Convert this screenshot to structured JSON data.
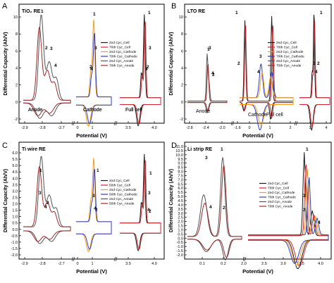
{
  "figure": {
    "y_label": "Differential Capacity (Ah/V)",
    "x_label": "Potential (V)"
  },
  "chart_data": [
    {
      "panel": "A",
      "type": "line",
      "title": "TiO₂ RE",
      "ylim": [
        -2,
        11
      ],
      "yticks": [
        "-2",
        "0",
        "2",
        "4",
        "6",
        "8",
        "10"
      ],
      "xticks": [
        "-2.9",
        "-2.8",
        "-2.7",
        "0",
        "1",
        "3.5",
        "4.0"
      ],
      "region_labels": [
        "Anode",
        "Cathode",
        "Full cell"
      ],
      "peak_labels": [
        "1",
        "2",
        "3",
        "4",
        "1",
        "2",
        "3",
        "4",
        "1",
        "2",
        "3",
        "4"
      ],
      "legend_position": "center-right",
      "series": [
        {
          "name": "2nd Cyc_Cell",
          "color": "#1a1a1a"
        },
        {
          "name": "70th Cyc_Cell",
          "color": "#d6262b"
        },
        {
          "name": "2nd Cyc_Cathode",
          "color": "#f39c12"
        },
        {
          "name": "70th Cyc_Cathode",
          "color": "#2b3bd1"
        },
        {
          "name": "2nd Cyc_Anode",
          "color": "#555555"
        },
        {
          "name": "70th Cyc_Anode",
          "color": "#9b2a2a"
        }
      ]
    },
    {
      "panel": "B",
      "type": "line",
      "title": "LTO RE",
      "ylim": [
        -2,
        11
      ],
      "yticks": [
        "-2",
        "0",
        "2",
        "4",
        "6",
        "8",
        "10"
      ],
      "xticks": [
        "-2.8",
        "-2.4",
        "-2.0",
        "-1.6",
        "0",
        "1",
        "2",
        "3",
        "4"
      ],
      "region_labels": [
        "Anode",
        "Cathode",
        "Full cell"
      ],
      "peak_labels": [
        "1",
        "2",
        "3",
        "4",
        "1",
        "2",
        "3",
        "4",
        "1",
        "2",
        "3",
        "4"
      ],
      "legend_position": "center-right",
      "series": [
        {
          "name": "2nd Cyc_Cell",
          "color": "#1a1a1a"
        },
        {
          "name": "70th Cyc_Cell",
          "color": "#d6262b"
        },
        {
          "name": "2nd Cyc_Cathode",
          "color": "#f39c12"
        },
        {
          "name": "70th Cyc_Cathode",
          "color": "#2b3bd1"
        },
        {
          "name": "2nd Cyc_Anode",
          "color": "#555555"
        },
        {
          "name": "70th Cyc_Anode",
          "color": "#9b2a2a"
        }
      ]
    },
    {
      "panel": "C",
      "type": "line",
      "title": "Ti wire RE",
      "ylim": [
        -2,
        6.5
      ],
      "yticks": [
        "-2.0",
        "-1.5",
        "-1.0",
        "-0.5",
        "0.0",
        "0.5",
        "1.0",
        "1.5",
        "2.0",
        "2.5",
        "3.0",
        "3.5",
        "4.0",
        "4.5",
        "5.0",
        "5.5",
        "6.0"
      ],
      "xticks": [
        "-2.9",
        "-2.8",
        "-2.7",
        "0",
        "1",
        "3.5",
        "4.0"
      ],
      "region_labels": [
        "Anode",
        "Cathode",
        "Full cell"
      ],
      "peak_labels": [
        "1",
        "2",
        "3",
        "4",
        "1",
        "2",
        "3",
        "4",
        "1",
        "2",
        "3",
        "4"
      ],
      "legend_position": "center-right",
      "series": [
        {
          "name": "2nd Cyc_Cell",
          "color": "#1a1a1a"
        },
        {
          "name": "50th Cyc_Cell",
          "color": "#d6262b"
        },
        {
          "name": "2nd Cyc_Cathode",
          "color": "#f39c12"
        },
        {
          "name": "50th Cyc_Cathode",
          "color": "#2b3bd1"
        },
        {
          "name": "2nd Cyc_Anode",
          "color": "#555555"
        },
        {
          "name": "50th Cyc_Anode",
          "color": "#9b2a2a"
        }
      ]
    },
    {
      "panel": "D",
      "type": "line",
      "title": "Li strip RE",
      "ylim": [
        -2,
        11
      ],
      "yticks": [
        "-2.0",
        "-1.5",
        "-1.0",
        "-0.5",
        "0.0",
        "0.5",
        "1.0",
        "1.5",
        "2.0",
        "2.5",
        "3.0",
        "3.5",
        "4.0",
        "4.5",
        "5.0",
        "5.5",
        "6.0",
        "6.5",
        "7.0",
        "7.5",
        "8.0",
        "8.5",
        "9.0",
        "9.5",
        "10.0",
        "10.5",
        "11.0"
      ],
      "xticks": [
        "0.1",
        "0.2",
        "2.0",
        "2.5",
        "3.0",
        "3.5",
        "4.0"
      ],
      "peak_labels": [
        "1",
        "2",
        "3",
        "4",
        "1",
        "2",
        "3",
        "4"
      ],
      "legend_position": "center",
      "series": [
        {
          "name": "2nd Cyc_Cell",
          "color": "#1a1a1a"
        },
        {
          "name": "70th Cyc_Cell",
          "color": "#d6262b"
        },
        {
          "name": "2nd Cyc_Cathode",
          "color": "#f39c12"
        },
        {
          "name": "70th Cyc_Cathode",
          "color": "#2b3bd1"
        },
        {
          "name": "2nd Cyc_Anode",
          "color": "#555555"
        },
        {
          "name": "70th Cyc_Anode",
          "color": "#9b2a2a"
        }
      ]
    }
  ]
}
